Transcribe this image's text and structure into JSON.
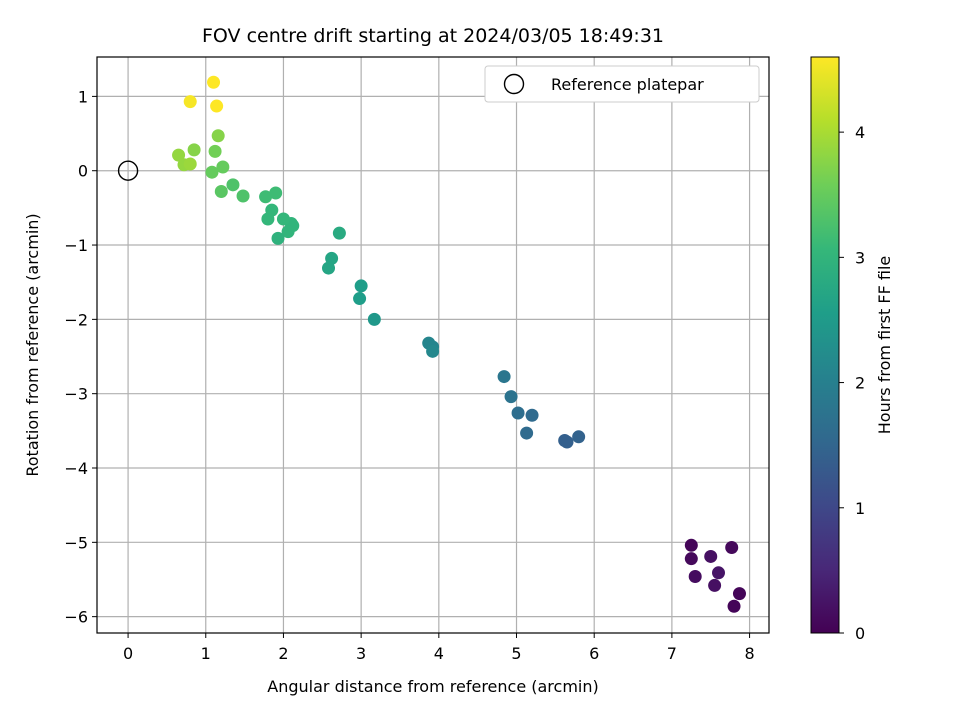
{
  "chart_data": {
    "type": "scatter",
    "title": "FOV centre drift starting at 2024/03/05 18:49:31",
    "xlabel": "Angular distance from reference (arcmin)",
    "ylabel": "Rotation from reference (arcmin)",
    "xlim": [
      -0.4,
      8.25
    ],
    "ylim": [
      -6.22,
      1.53
    ],
    "xticks": [
      0,
      1,
      2,
      3,
      4,
      5,
      6,
      7,
      8
    ],
    "yticks": [
      -6,
      -5,
      -4,
      -3,
      -2,
      -1,
      0,
      1
    ],
    "grid": true,
    "legend": {
      "position": "top-right",
      "label": "Reference platepar",
      "marker": "open-circle"
    },
    "reference_point": {
      "x": 0,
      "y": 0
    },
    "colorbar": {
      "label": "Hours from first FF file",
      "min": 0,
      "max": 4.6,
      "ticks": [
        0,
        1,
        2,
        3,
        4
      ],
      "colormap": "viridis"
    },
    "colors": {
      "viridis": [
        "#440154",
        "#482878",
        "#3e4989",
        "#31688e",
        "#26828e",
        "#1f9e89",
        "#35b779",
        "#6ece58",
        "#b5de2b",
        "#fde725"
      ]
    },
    "points": [
      {
        "x": 7.25,
        "y": -5.04,
        "t": 0.05
      },
      {
        "x": 7.25,
        "y": -5.22,
        "t": 0.1
      },
      {
        "x": 7.3,
        "y": -5.46,
        "t": 0.15
      },
      {
        "x": 7.5,
        "y": -5.19,
        "t": 0.2
      },
      {
        "x": 7.6,
        "y": -5.41,
        "t": 0.25
      },
      {
        "x": 7.55,
        "y": -5.58,
        "t": 0.2
      },
      {
        "x": 7.77,
        "y": -5.07,
        "t": 0.1
      },
      {
        "x": 7.87,
        "y": -5.69,
        "t": 0.05
      },
      {
        "x": 7.8,
        "y": -5.86,
        "t": 0.05
      },
      {
        "x": 5.8,
        "y": -3.58,
        "t": 1.45
      },
      {
        "x": 5.65,
        "y": -3.65,
        "t": 1.4
      },
      {
        "x": 5.62,
        "y": -3.63,
        "t": 1.4
      },
      {
        "x": 5.2,
        "y": -3.29,
        "t": 1.6
      },
      {
        "x": 5.13,
        "y": -3.53,
        "t": 1.6
      },
      {
        "x": 5.02,
        "y": -3.26,
        "t": 1.65
      },
      {
        "x": 4.93,
        "y": -3.04,
        "t": 1.75
      },
      {
        "x": 4.84,
        "y": -2.77,
        "t": 1.8
      },
      {
        "x": 3.87,
        "y": -2.32,
        "t": 2.1
      },
      {
        "x": 3.92,
        "y": -2.37,
        "t": 2.1
      },
      {
        "x": 3.92,
        "y": -2.43,
        "t": 2.15
      },
      {
        "x": 3.17,
        "y": -2.0,
        "t": 2.45
      },
      {
        "x": 3.0,
        "y": -1.55,
        "t": 2.55
      },
      {
        "x": 2.98,
        "y": -1.72,
        "t": 2.55
      },
      {
        "x": 2.62,
        "y": -1.18,
        "t": 2.7
      },
      {
        "x": 2.58,
        "y": -1.31,
        "t": 2.7
      },
      {
        "x": 2.72,
        "y": -0.84,
        "t": 2.8
      },
      {
        "x": 2.1,
        "y": -0.71,
        "t": 3.0
      },
      {
        "x": 2.12,
        "y": -0.74,
        "t": 3.0
      },
      {
        "x": 2.06,
        "y": -0.82,
        "t": 3.0
      },
      {
        "x": 2.0,
        "y": -0.65,
        "t": 3.05
      },
      {
        "x": 1.93,
        "y": -0.91,
        "t": 2.95
      },
      {
        "x": 1.8,
        "y": -0.65,
        "t": 3.05
      },
      {
        "x": 1.85,
        "y": -0.53,
        "t": 3.05
      },
      {
        "x": 1.77,
        "y": -0.35,
        "t": 3.15
      },
      {
        "x": 1.9,
        "y": -0.3,
        "t": 3.15
      },
      {
        "x": 1.48,
        "y": -0.34,
        "t": 3.3
      },
      {
        "x": 1.35,
        "y": -0.19,
        "t": 3.3
      },
      {
        "x": 1.2,
        "y": -0.28,
        "t": 3.4
      },
      {
        "x": 1.22,
        "y": 0.05,
        "t": 3.5
      },
      {
        "x": 1.08,
        "y": -0.02,
        "t": 3.5
      },
      {
        "x": 1.12,
        "y": 0.26,
        "t": 3.6
      },
      {
        "x": 1.16,
        "y": 0.47,
        "t": 3.75
      },
      {
        "x": 0.85,
        "y": 0.28,
        "t": 3.75
      },
      {
        "x": 0.65,
        "y": 0.21,
        "t": 3.85
      },
      {
        "x": 0.72,
        "y": 0.08,
        "t": 3.85
      },
      {
        "x": 0.8,
        "y": 0.09,
        "t": 3.9
      },
      {
        "x": 0.8,
        "y": 0.93,
        "t": 4.55
      },
      {
        "x": 1.1,
        "y": 1.19,
        "t": 4.6
      },
      {
        "x": 1.14,
        "y": 0.87,
        "t": 4.6
      }
    ]
  }
}
